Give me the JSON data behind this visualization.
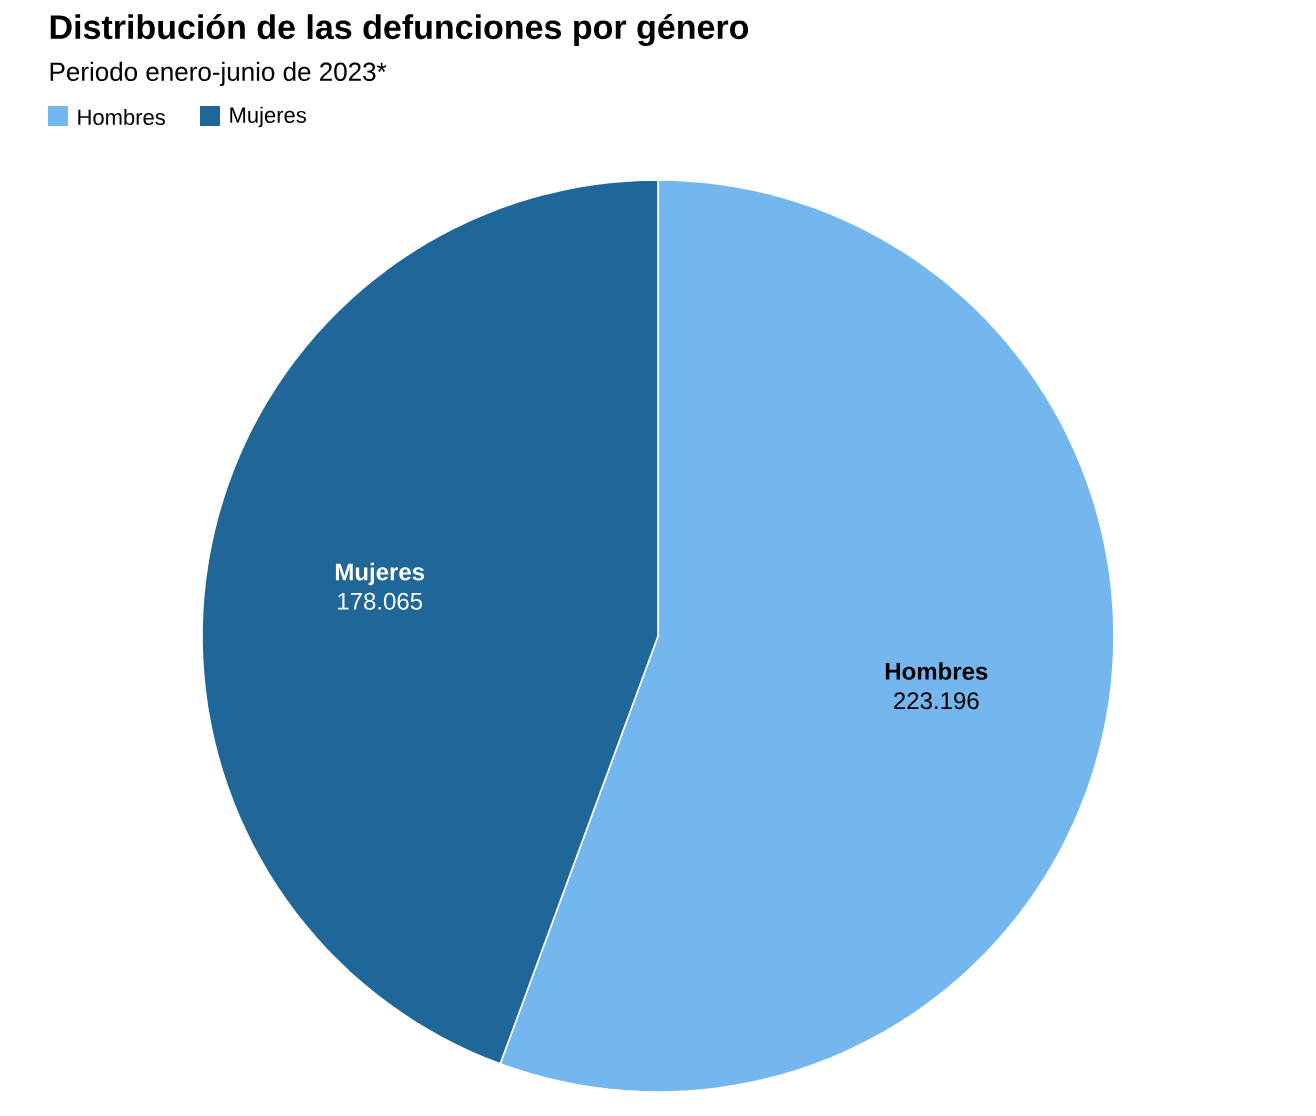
{
  "chart_data": {
    "type": "pie",
    "title": "Distribución de las defunciones por género",
    "subtitle": "Periodo enero-junio de 2023*",
    "categories": [
      "Hombres",
      "Mujeres"
    ],
    "values": [
      223196,
      178065
    ],
    "colors": [
      "#74b7ee",
      "#1f6699"
    ],
    "value_labels": [
      "223.196",
      "178.065"
    ],
    "legend": "top left"
  }
}
